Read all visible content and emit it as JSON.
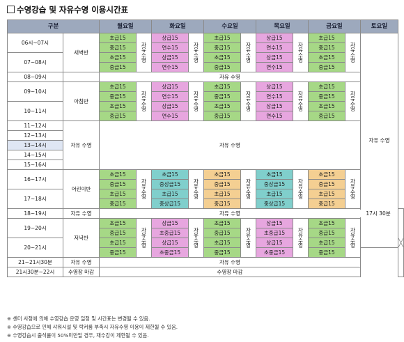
{
  "title": "수영강습 및 자유수영 이용시간표",
  "headers": {
    "category": "구분",
    "days": [
      "월요일",
      "화요일",
      "수요일",
      "목요일",
      "금요일"
    ],
    "saturday": "토요일"
  },
  "times": [
    "06시~07시",
    "07~08시",
    "08~09시",
    "09~10시",
    "10~11시",
    "11~12시",
    "12~13시",
    "13~14시",
    "14~15시",
    "15~16시",
    "16~17시",
    "17~18시",
    "18~19시",
    "19~20시",
    "20~21시",
    "21~21시30분",
    "21시30분~22시"
  ],
  "sessions": {
    "dawn": "새벽반",
    "morning": "아침반",
    "children": "어린이반",
    "evening": "저녁반",
    "free": "자유 수영",
    "closing": "수영장 마감"
  },
  "free_swim_vertical": "자유수영",
  "saturday_free": "자유 수영",
  "saturday_until": "17시 30분",
  "rows": {
    "dawn": [
      [
        "초급15",
        "중급15",
        "상급15",
        "연수15",
        "초급15",
        "중급15",
        "상급15",
        "연수15",
        "초급15",
        "중급15"
      ],
      [
        "초급15",
        "중급15",
        "상급15",
        "연수15",
        "초급15",
        "중급15",
        "상급15",
        "연수15",
        "초급15",
        "중급15"
      ]
    ],
    "morning": [
      [
        "초급15",
        "중급15",
        "상급15",
        "연수15",
        "초급15",
        "중급15",
        "상급15",
        "연수15",
        "초급15",
        "중급15"
      ],
      [
        "초급15",
        "중급15",
        "상급15",
        "연수15",
        "초급15",
        "중급15",
        "상급15",
        "연수15",
        "초급15",
        "중급15"
      ]
    ],
    "children": [
      [
        "초급15",
        "중급15",
        "초급15",
        "중상급15",
        "초급15",
        "중급15",
        "초급15",
        "중상급15",
        "초급15",
        "중급15"
      ],
      [
        "초급15",
        "중급15",
        "초급15",
        "중상급15",
        "초급15",
        "중급15",
        "초급15",
        "중상급15",
        "초급15",
        "중급15"
      ]
    ],
    "evening": [
      [
        "초급15",
        "중급15",
        "상급15",
        "초중급15",
        "초급15",
        "중급15",
        "상급15",
        "초중급15",
        "초급15",
        "중급15"
      ],
      [
        "초급15",
        "중급15",
        "상급15",
        "초중급15",
        "초급15",
        "중급15",
        "상급15",
        "초중급15",
        "초급15",
        "중급15"
      ]
    ]
  },
  "notes": [
    "※ 센터 사정에 의해 수영강습 운영 일정 및 시간표는 변경될 수 있음.",
    "※ 수영강습으로 인해 샤워시설 및 락커룸 부족시 자유수영 이용이 제한될 수 있음.",
    "※ 수영강습시 출석률이 50%미만일 경우, 재수강이 제한될 수 있음."
  ],
  "colors": {
    "header": "#9da9bd",
    "green": "#a6d886",
    "pink": "#e7a6df",
    "teal": "#80cfcc",
    "orange": "#f4cf92"
  }
}
